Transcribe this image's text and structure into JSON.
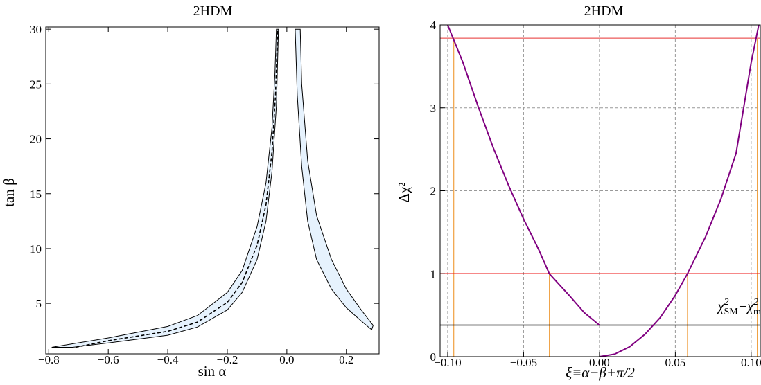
{
  "chart_data": [
    {
      "type": "area",
      "title": "2HDM",
      "xlabel": "sin α",
      "ylabel": "tan β",
      "xlim": [
        -0.81,
        0.31
      ],
      "ylim": [
        0.4,
        30.2
      ],
      "grid": false,
      "xticks": [
        -0.8,
        -0.6,
        -0.4,
        -0.2,
        0.0,
        0.2
      ],
      "xtick_labels": [
        "−0.8",
        "−0.6",
        "−0.4",
        "−0.2",
        "0.0",
        "0.2"
      ],
      "yticks": [
        5,
        10,
        15,
        20,
        25,
        30
      ],
      "ytick_labels": [
        "5",
        "10",
        "15",
        "20",
        "25",
        "30"
      ],
      "fill_color": "#e6f2fd",
      "regions": [
        {
          "outer_boundary": [
            [
              -0.79,
              1.0
            ],
            [
              -0.6,
              1.85
            ],
            [
              -0.4,
              2.9
            ],
            [
              -0.3,
              3.9
            ],
            [
              -0.2,
              6.0
            ],
            [
              -0.15,
              8.0
            ],
            [
              -0.1,
              12.0
            ],
            [
              -0.07,
              16.0
            ],
            [
              -0.05,
              21.0
            ],
            [
              -0.04,
              26.0
            ],
            [
              -0.035,
              30.0
            ]
          ],
          "inner_boundary": [
            [
              -0.72,
              1.0
            ],
            [
              -0.6,
              1.4
            ],
            [
              -0.4,
              2.1
            ],
            [
              -0.3,
              2.85
            ],
            [
              -0.2,
              4.4
            ],
            [
              -0.15,
              6.0
            ],
            [
              -0.1,
              9.0
            ],
            [
              -0.07,
              12.5
            ],
            [
              -0.05,
              17.0
            ],
            [
              -0.035,
              23.0
            ],
            [
              -0.028,
              30.0
            ]
          ]
        },
        {
          "outer_boundary": [
            [
              0.028,
              30.0
            ],
            [
              0.035,
              24.0
            ],
            [
              0.05,
              17.5
            ],
            [
              0.07,
              12.5
            ],
            [
              0.1,
              9.0
            ],
            [
              0.15,
              6.3
            ],
            [
              0.2,
              4.6
            ],
            [
              0.25,
              3.4
            ],
            [
              0.285,
              2.6
            ]
          ],
          "inner_boundary": [
            [
              0.045,
              30.0
            ],
            [
              0.05,
              25.0
            ],
            [
              0.07,
              18.0
            ],
            [
              0.1,
              13.0
            ],
            [
              0.15,
              9.0
            ],
            [
              0.2,
              6.3
            ],
            [
              0.25,
              4.4
            ],
            [
              0.29,
              3.0
            ]
          ]
        }
      ],
      "dashed_curve": [
        [
          -0.71,
          1.0
        ],
        [
          -0.6,
          1.6
        ],
        [
          -0.4,
          2.45
        ],
        [
          -0.3,
          3.3
        ],
        [
          -0.2,
          5.1
        ],
        [
          -0.15,
          6.9
        ],
        [
          -0.1,
          10.3
        ],
        [
          -0.07,
          14.0
        ],
        [
          -0.05,
          18.8
        ],
        [
          -0.038,
          24.0
        ],
        [
          -0.031,
          30.0
        ]
      ]
    },
    {
      "type": "line",
      "title": "2HDM",
      "xlabel": "ξ≡α−β+π/2",
      "ylabel": "Δχ²",
      "xlim": [
        -0.105,
        0.106
      ],
      "ylim": [
        0,
        4
      ],
      "grid": true,
      "xticks": [
        -0.1,
        -0.05,
        0.0,
        0.05,
        0.1
      ],
      "xtick_labels": [
        "−0.10",
        "−0.05",
        "0.00",
        "0.05",
        "0.10"
      ],
      "yticks": [
        0,
        1,
        2,
        3,
        4
      ],
      "ytick_labels": [
        "0",
        "1",
        "2",
        "3",
        "4"
      ],
      "series": [
        {
          "color": "#800080",
          "x": [
            -0.1,
            -0.09,
            -0.08,
            -0.07,
            -0.06,
            -0.05,
            -0.04,
            -0.033,
            -0.02,
            -0.01,
            0.0
          ],
          "y": [
            4.0,
            3.55,
            3.02,
            2.52,
            2.07,
            1.66,
            1.29,
            1.0,
            0.74,
            0.53,
            0.38
          ]
        },
        {
          "color": "#800080",
          "x": [
            0.0,
            0.01,
            0.02,
            0.03,
            0.04,
            0.05,
            0.058,
            0.07,
            0.08,
            0.09,
            0.1,
            0.105
          ],
          "y": [
            0.0,
            0.03,
            0.12,
            0.27,
            0.47,
            0.74,
            1.0,
            1.45,
            1.9,
            2.45,
            3.55,
            4.0
          ]
        }
      ],
      "hlines": [
        {
          "y": 3.84,
          "color": "#f08080"
        },
        {
          "y": 1.0,
          "color": "#ee1111"
        },
        {
          "y": 0.38,
          "color": "#000000"
        }
      ],
      "vlines": [
        {
          "x": -0.096,
          "ymax": 3.84,
          "color": "#f0a040"
        },
        {
          "x": -0.033,
          "ymax": 1.0,
          "color": "#f0a040"
        },
        {
          "x": 0.058,
          "ymax": 1.0,
          "color": "#f0a040"
        },
        {
          "x": 0.104,
          "ymax": 3.84,
          "color": "#f0a040"
        }
      ],
      "annotation": {
        "x": 0.078,
        "y": 0.55,
        "parts": [
          "χ",
          "2",
          "SM",
          "−χ",
          "2",
          "min"
        ]
      }
    }
  ]
}
